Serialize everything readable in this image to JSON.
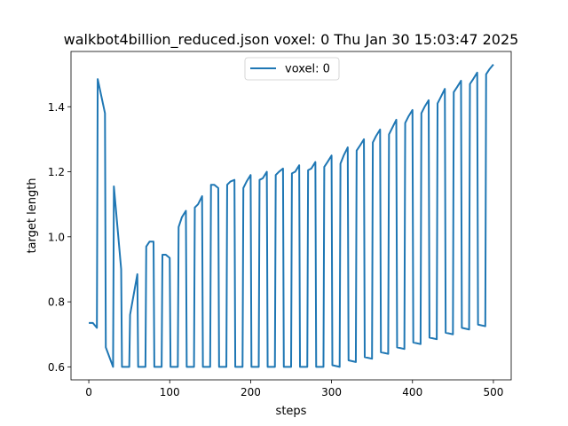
{
  "chart_data": {
    "type": "line",
    "title": "walkbot4billion_reduced.json voxel: 0 Thu Jan 30 15:03:47 2025",
    "xlabel": "steps",
    "ylabel": "target length",
    "xlim": [
      -22,
      522
    ],
    "ylim": [
      0.56,
      1.57
    ],
    "xticks": [
      0,
      100,
      200,
      300,
      400,
      500
    ],
    "yticks": [
      0.6,
      0.8,
      1.0,
      1.2,
      1.4
    ],
    "xtick_labels": [
      "0",
      "100",
      "200",
      "300",
      "400",
      "500"
    ],
    "ytick_labels": [
      "0.6",
      "0.8",
      "1.0",
      "1.2",
      "1.4"
    ],
    "legend": {
      "position": "upper center"
    },
    "series": [
      {
        "name": "voxel: 0",
        "color": "#1f77b4",
        "x": [
          0,
          5,
          10,
          11,
          20,
          21,
          30,
          31,
          40,
          41,
          50,
          51,
          60,
          61,
          70,
          71,
          75,
          80,
          81,
          90,
          91,
          95,
          100,
          101,
          110,
          111,
          115,
          120,
          121,
          130,
          131,
          135,
          140,
          141,
          150,
          151,
          155,
          160,
          161,
          170,
          171,
          175,
          180,
          181,
          190,
          191,
          195,
          200,
          201,
          210,
          211,
          215,
          220,
          221,
          230,
          231,
          235,
          240,
          241,
          250,
          251,
          255,
          260,
          261,
          270,
          271,
          275,
          280,
          281,
          290,
          291,
          295,
          300,
          301,
          310,
          311,
          315,
          320,
          321,
          330,
          331,
          335,
          340,
          341,
          350,
          351,
          355,
          360,
          361,
          370,
          371,
          375,
          380,
          381,
          390,
          391,
          395,
          400,
          401,
          410,
          411,
          415,
          420,
          421,
          430,
          431,
          435,
          440,
          441,
          450,
          451,
          455,
          460,
          461,
          470,
          471,
          475,
          480,
          481,
          490,
          491,
          495,
          500
        ],
        "y": [
          0.735,
          0.735,
          0.72,
          1.485,
          1.38,
          0.66,
          0.6,
          1.155,
          0.9,
          0.6,
          0.6,
          0.76,
          0.885,
          0.6,
          0.6,
          0.97,
          0.985,
          0.985,
          0.6,
          0.6,
          0.945,
          0.945,
          0.935,
          0.6,
          0.6,
          1.03,
          1.06,
          1.08,
          0.6,
          0.6,
          1.09,
          1.1,
          1.125,
          0.6,
          0.6,
          1.16,
          1.16,
          1.15,
          0.6,
          0.6,
          1.16,
          1.17,
          1.175,
          0.6,
          0.6,
          1.15,
          1.17,
          1.19,
          0.6,
          0.6,
          1.175,
          1.18,
          1.2,
          0.6,
          0.6,
          1.19,
          1.2,
          1.21,
          0.6,
          0.6,
          1.195,
          1.2,
          1.22,
          0.6,
          0.6,
          1.205,
          1.21,
          1.23,
          0.6,
          0.6,
          1.215,
          1.23,
          1.25,
          0.605,
          0.6,
          1.225,
          1.25,
          1.275,
          0.62,
          0.615,
          1.265,
          1.28,
          1.3,
          0.63,
          0.625,
          1.29,
          1.31,
          1.33,
          0.645,
          0.64,
          1.315,
          1.335,
          1.36,
          0.66,
          0.655,
          1.35,
          1.37,
          1.39,
          0.675,
          0.67,
          1.38,
          1.4,
          1.42,
          0.69,
          0.685,
          1.41,
          1.43,
          1.455,
          0.705,
          0.7,
          1.445,
          1.46,
          1.48,
          0.72,
          0.715,
          1.47,
          1.485,
          1.505,
          0.73,
          0.725,
          1.5,
          1.515,
          1.53
        ]
      }
    ]
  }
}
